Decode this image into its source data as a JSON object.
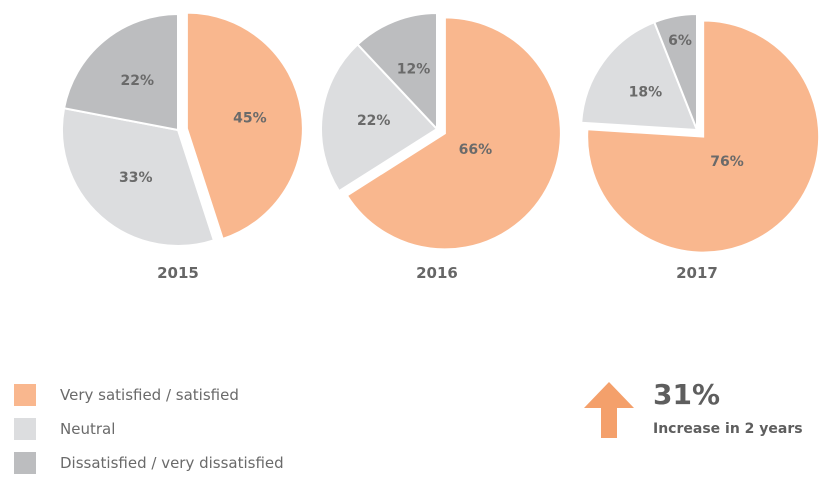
{
  "chart_data": [
    {
      "type": "pie",
      "xlabel": "2015",
      "slices": [
        {
          "name": "Very satisfied / satisfied",
          "value": 45,
          "label": "45%"
        },
        {
          "name": "Neutral",
          "value": 33,
          "label": "33%"
        },
        {
          "name": "Dissatisfied / very dissatisfied",
          "value": 22,
          "label": "22%"
        }
      ]
    },
    {
      "type": "pie",
      "xlabel": "2016",
      "slices": [
        {
          "name": "Very satisfied / satisfied",
          "value": 66,
          "label": "66%"
        },
        {
          "name": "Neutral",
          "value": 22,
          "label": "22%"
        },
        {
          "name": "Dissatisfied / very dissatisfied",
          "value": 12,
          "label": "12%"
        }
      ]
    },
    {
      "type": "pie",
      "xlabel": "2017",
      "slices": [
        {
          "name": "Very satisfied / satisfied",
          "value": 76,
          "label": "76%"
        },
        {
          "name": "Neutral",
          "value": 18,
          "label": "18%"
        },
        {
          "name": "Dissatisfied / very dissatisfied",
          "value": 6,
          "label": "6%"
        }
      ]
    }
  ],
  "legend": {
    "placement": "bottom-left",
    "items": [
      {
        "label": "Very satisfied / satisfied",
        "color": "#f9b78e"
      },
      {
        "label": "Neutral",
        "color": "#dcdddf"
      },
      {
        "label": "Dissatisfied / very dissatisfied",
        "color": "#bcbdbf"
      }
    ]
  },
  "callout": {
    "value": "31%",
    "caption": "Increase in 2 years",
    "icon": "arrow-up-icon",
    "color": "#f4a06b"
  }
}
